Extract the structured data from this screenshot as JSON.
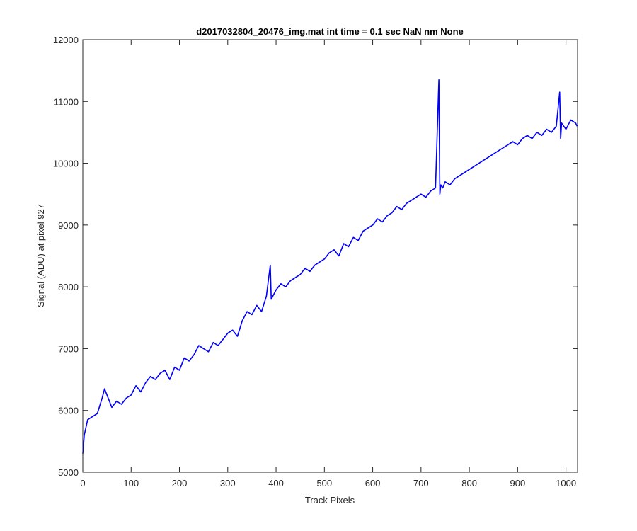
{
  "chart_data": {
    "type": "line",
    "title": "d2017032804_20476_img.mat int time = 0.1 sec  NaN nm None",
    "xlabel": "Track Pixels",
    "ylabel": "Signal (ADU) at pixel 927",
    "xlim": [
      0,
      1024
    ],
    "ylim": [
      5000,
      12000
    ],
    "xticks": [
      0,
      100,
      200,
      300,
      400,
      500,
      600,
      700,
      800,
      900,
      1000
    ],
    "yticks": [
      5000,
      6000,
      7000,
      8000,
      9000,
      10000,
      11000,
      12000
    ],
    "grid": false,
    "line_color": "#0000ff",
    "series": [
      {
        "x": [
          0,
          3,
          10,
          20,
          30,
          40,
          45,
          60,
          70,
          80,
          90,
          100,
          110,
          120,
          130,
          140,
          150,
          160,
          170,
          180,
          190,
          200,
          210,
          220,
          230,
          240,
          250,
          260,
          270,
          280,
          290,
          300,
          310,
          320,
          330,
          340,
          350,
          360,
          370,
          380,
          388,
          390,
          400,
          410,
          420,
          430,
          440,
          450,
          460,
          470,
          480,
          490,
          500,
          510,
          520,
          530,
          540,
          550,
          560,
          570,
          580,
          590,
          600,
          610,
          620,
          630,
          640,
          650,
          660,
          670,
          680,
          690,
          700,
          710,
          720,
          730,
          737,
          739,
          741,
          745,
          750,
          760,
          770,
          780,
          790,
          800,
          810,
          820,
          830,
          840,
          850,
          860,
          870,
          880,
          890,
          900,
          910,
          920,
          930,
          940,
          950,
          960,
          970,
          980,
          987,
          989,
          991,
          1000,
          1010,
          1020,
          1023
        ],
        "y": [
          5300,
          5600,
          5850,
          5900,
          5950,
          6200,
          6350,
          6050,
          6150,
          6100,
          6200,
          6250,
          6400,
          6300,
          6450,
          6550,
          6500,
          6600,
          6650,
          6500,
          6700,
          6650,
          6850,
          6800,
          6900,
          7050,
          7000,
          6950,
          7100,
          7050,
          7150,
          7250,
          7300,
          7200,
          7450,
          7600,
          7550,
          7700,
          7600,
          7850,
          8350,
          7800,
          7950,
          8050,
          8000,
          8100,
          8150,
          8200,
          8300,
          8250,
          8350,
          8400,
          8450,
          8550,
          8600,
          8500,
          8700,
          8650,
          8800,
          8750,
          8900,
          8950,
          9000,
          9100,
          9050,
          9150,
          9200,
          9300,
          9250,
          9350,
          9400,
          9450,
          9500,
          9450,
          9550,
          9600,
          11350,
          9500,
          9650,
          9600,
          9700,
          9650,
          9750,
          9800,
          9850,
          9900,
          9950,
          10000,
          10050,
          10100,
          10150,
          10200,
          10250,
          10300,
          10350,
          10300,
          10400,
          10450,
          10400,
          10500,
          10450,
          10550,
          10500,
          10600,
          11150,
          10400,
          10650,
          10550,
          10700,
          10650,
          10600
        ]
      }
    ]
  }
}
